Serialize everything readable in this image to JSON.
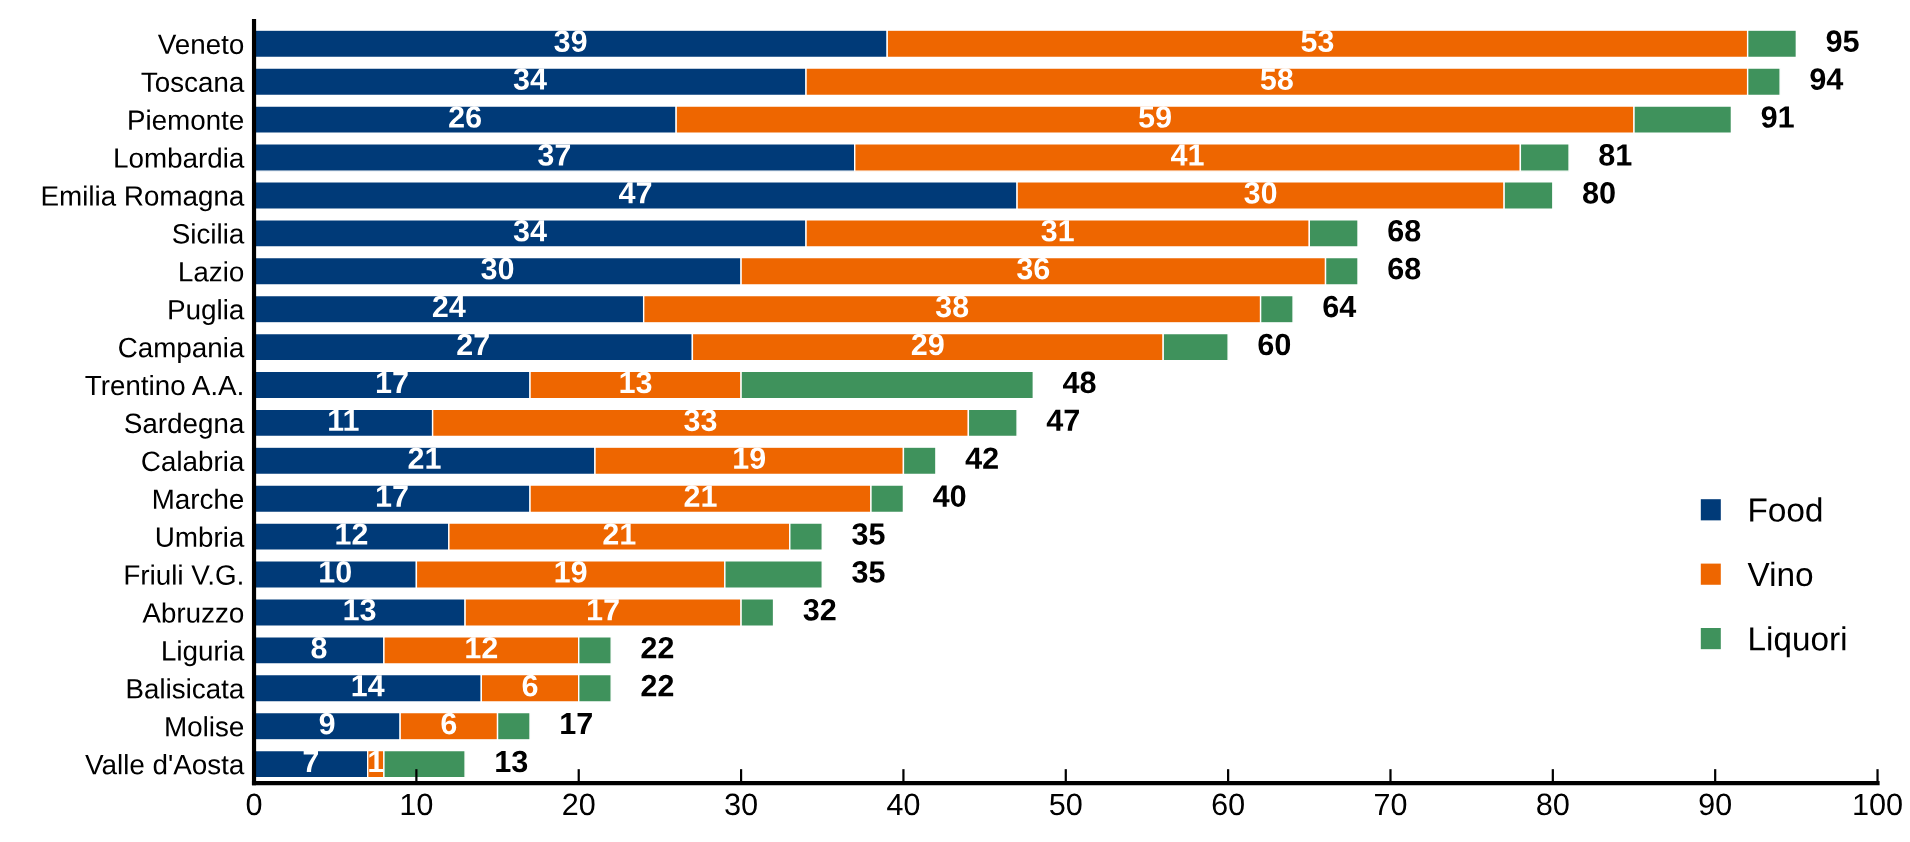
{
  "chart_data": {
    "type": "bar",
    "orientation": "horizontal",
    "stacked": true,
    "categories": [
      "Veneto",
      "Toscana",
      "Piemonte",
      "Lombardia",
      "Emilia Romagna",
      "Sicilia",
      "Lazio",
      "Puglia",
      "Campania",
      "Trentino A.A.",
      "Sardegna",
      "Calabria",
      "Marche",
      "Umbria",
      "Friuli V.G.",
      "Abruzzo",
      "Liguria",
      "Balisicata",
      "Molise",
      "Valle d'Aosta"
    ],
    "series": [
      {
        "name": "Food",
        "color": "#003a78",
        "values": [
          39,
          34,
          26,
          37,
          47,
          34,
          30,
          24,
          27,
          17,
          11,
          21,
          17,
          12,
          10,
          13,
          8,
          14,
          9,
          7
        ],
        "value_labels": [
          "39",
          "34",
          "26",
          "37",
          "47",
          "34",
          "30",
          "24",
          "27",
          "17",
          "11",
          "21",
          "17",
          "12",
          "10",
          "13",
          "8",
          "14",
          "9",
          "7"
        ]
      },
      {
        "name": "Vino",
        "color": "#ee6600",
        "values": [
          53,
          58,
          59,
          41,
          30,
          31,
          36,
          38,
          29,
          13,
          33,
          19,
          21,
          21,
          19,
          17,
          12,
          6,
          6,
          1
        ],
        "value_labels": [
          "53",
          "58",
          "59",
          "41",
          "30",
          "31",
          "36",
          "38",
          "29",
          "13",
          "33",
          "19",
          "21",
          "21",
          "19",
          "17",
          "12",
          "6",
          "6",
          "1"
        ]
      },
      {
        "name": "Liquori",
        "color": "#3f925c",
        "values": [
          3,
          2,
          6,
          3,
          3,
          3,
          2,
          2,
          4,
          18,
          3,
          2,
          2,
          2,
          6,
          2,
          2,
          2,
          2,
          5
        ]
      }
    ],
    "totals": [
      "95",
      "94",
      "91",
      "81",
      "80",
      "68",
      "68",
      "64",
      "60",
      "48",
      "47",
      "42",
      "40",
      "35",
      "35",
      "32",
      "22",
      "22",
      "17",
      "13"
    ],
    "xlim": [
      0,
      100
    ],
    "xticks": [
      0,
      10,
      20,
      30,
      40,
      50,
      60,
      70,
      80,
      90,
      100
    ],
    "grid": false,
    "legend": "right"
  }
}
